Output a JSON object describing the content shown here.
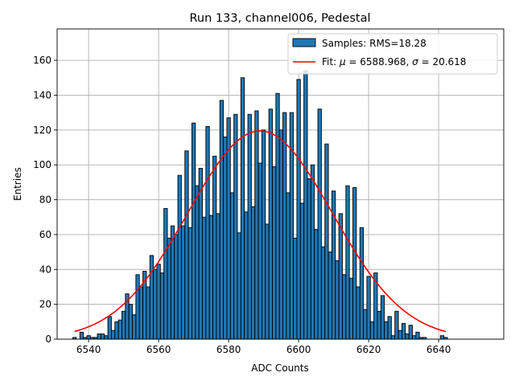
{
  "chart_data": {
    "type": "bar",
    "title": "Run 133, channel006, Pedestal",
    "xlabel": "ADC Counts",
    "ylabel": "Entries",
    "xlim": [
      6531,
      6658.6
    ],
    "ylim": [
      0,
      178
    ],
    "grid": true,
    "legend_placement": "top-right",
    "x_ticks": [
      6540,
      6560,
      6580,
      6600,
      6620,
      6640
    ],
    "y_ticks": [
      0,
      20,
      40,
      60,
      80,
      100,
      120,
      140,
      160
    ],
    "histogram": {
      "name": "Samples: RMS=18.28",
      "color": "#1f77b4",
      "bin_start": 6536,
      "bin_width": 1,
      "values": [
        1,
        0,
        4,
        1,
        2,
        1,
        1,
        3,
        3,
        2,
        13,
        5,
        10,
        11,
        16,
        26,
        20,
        14,
        37,
        30,
        39,
        30,
        48,
        40,
        43,
        38,
        75,
        58,
        65,
        60,
        94,
        65,
        108,
        64,
        124,
        88,
        98,
        70,
        122,
        71,
        105,
        72,
        137,
        116,
        127,
        84,
        129,
        61,
        150,
        73,
        129,
        76,
        131,
        101,
        120,
        66,
        132,
        99,
        141,
        120,
        130,
        84,
        130,
        58,
        149,
        78,
        154,
        92,
        100,
        63,
        132,
        53,
        112,
        50,
        85,
        45,
        72,
        37,
        88,
        35,
        87,
        30,
        64,
        17,
        36,
        10,
        38,
        16,
        25,
        10,
        13,
        2,
        16,
        5,
        9,
        3,
        8,
        2,
        4,
        1,
        1,
        0,
        0,
        0,
        0,
        2,
        1
      ]
    },
    "fit": {
      "name_prefix": "Fit: ",
      "name_mu": "μ",
      "name_rest": " = 6588.968, ",
      "name_sigma": "σ",
      "name_end": " = 20.618",
      "mu": 6588.968,
      "sigma": 20.618,
      "amplitude": 119.5,
      "range": [
        6536,
        6642
      ],
      "color": "#ff0000"
    }
  }
}
